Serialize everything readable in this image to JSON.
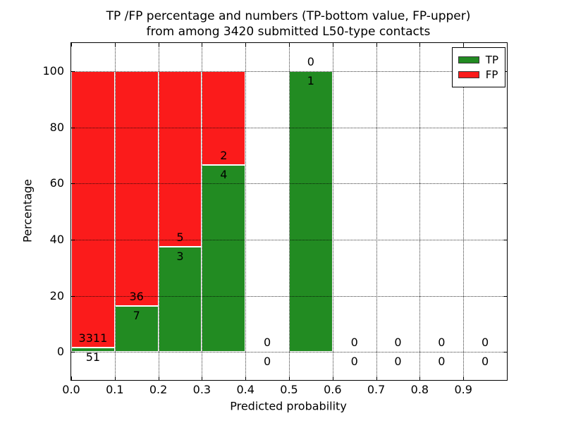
{
  "chart_data": {
    "type": "bar",
    "stacked": true,
    "title_line1": "TP /FP percentage and numbers (TP-bottom value, FP-upper)",
    "title_line2": "from among 3420 submitted L50-type contacts",
    "xlabel": "Predicted probability",
    "ylabel": "Percentage",
    "xlim": [
      0.0,
      1.0
    ],
    "ylim": [
      -10,
      110
    ],
    "yticks": [
      0,
      20,
      40,
      60,
      80,
      100
    ],
    "xticks": [
      "0.0",
      "0.1",
      "0.2",
      "0.3",
      "0.4",
      "0.5",
      "0.6",
      "0.7",
      "0.8",
      "0.9"
    ],
    "grid": true,
    "grid_style": "dotted",
    "legend_position": "upper right",
    "legend": [
      {
        "name": "TP",
        "color": "#228b22"
      },
      {
        "name": "FP",
        "color": "#fb1b1b"
      }
    ],
    "total_contacts": 3420,
    "colors": {
      "tp": "#228b22",
      "fp": "#fb1b1b"
    },
    "bins": [
      {
        "range": [
          0.0,
          0.1
        ],
        "tp": 51,
        "fp": 3311,
        "tp_percent": 1.52
      },
      {
        "range": [
          0.1,
          0.2
        ],
        "tp": 7,
        "fp": 36,
        "tp_percent": 16.28
      },
      {
        "range": [
          0.2,
          0.3
        ],
        "tp": 3,
        "fp": 5,
        "tp_percent": 37.5
      },
      {
        "range": [
          0.3,
          0.4
        ],
        "tp": 4,
        "fp": 2,
        "tp_percent": 66.67
      },
      {
        "range": [
          0.4,
          0.5
        ],
        "tp": 0,
        "fp": 0,
        "tp_percent": 0
      },
      {
        "range": [
          0.5,
          0.6
        ],
        "tp": 1,
        "fp": 0,
        "tp_percent": 100
      },
      {
        "range": [
          0.6,
          0.7
        ],
        "tp": 0,
        "fp": 0,
        "tp_percent": 0
      },
      {
        "range": [
          0.7,
          0.8
        ],
        "tp": 0,
        "fp": 0,
        "tp_percent": 0
      },
      {
        "range": [
          0.8,
          0.9
        ],
        "tp": 0,
        "fp": 0,
        "tp_percent": 0
      },
      {
        "range": [
          0.9,
          1.0
        ],
        "tp": 0,
        "fp": 0,
        "tp_percent": 0
      }
    ]
  }
}
